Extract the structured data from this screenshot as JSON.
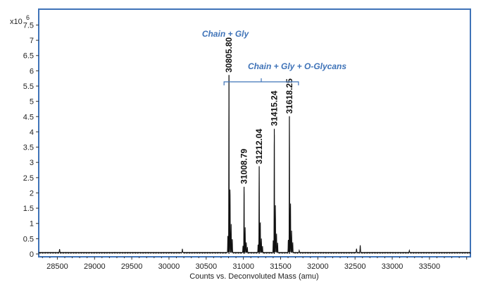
{
  "chart_data": {
    "type": "line",
    "title": "",
    "xlabel": "Counts vs. Deconvoluted Mass (amu)",
    "ylabel": "",
    "y_scale_label": "x10",
    "y_scale_exponent": "6",
    "xlim": [
      28250,
      34050
    ],
    "ylim": [
      0,
      7.95
    ],
    "x_ticks": [
      "28500",
      "29000",
      "29500",
      "30000",
      "30500",
      "31000",
      "31500",
      "32000",
      "32500",
      "33000",
      "33500"
    ],
    "y_ticks": [
      "0",
      "0.5",
      "1",
      "1.5",
      "2",
      "2.5",
      "3",
      "3.5",
      "4",
      "4.5",
      "5",
      "5.5",
      "6",
      "6.5",
      "7",
      "7.5"
    ],
    "grid": false,
    "frame_color": "#3f73b8",
    "line_color": "#111111",
    "annotation_color": "#3f73b8",
    "peaks": [
      {
        "mass": 30805.8,
        "intensity": 5.85,
        "label": "30805.80"
      },
      {
        "mass": 31008.79,
        "intensity": 2.2,
        "label": "31008.79"
      },
      {
        "mass": 31212.04,
        "intensity": 2.85,
        "label": "31212.04"
      },
      {
        "mass": 31415.24,
        "intensity": 4.1,
        "label": "31415.24"
      },
      {
        "mass": 31618.25,
        "intensity": 4.5,
        "label": "31618.25"
      }
    ],
    "annotations": [
      {
        "text": "Chain + Gly"
      },
      {
        "text": "Chain + Gly + O-Glycans",
        "bracket_from": 30740,
        "bracket_to": 31740
      }
    ]
  }
}
